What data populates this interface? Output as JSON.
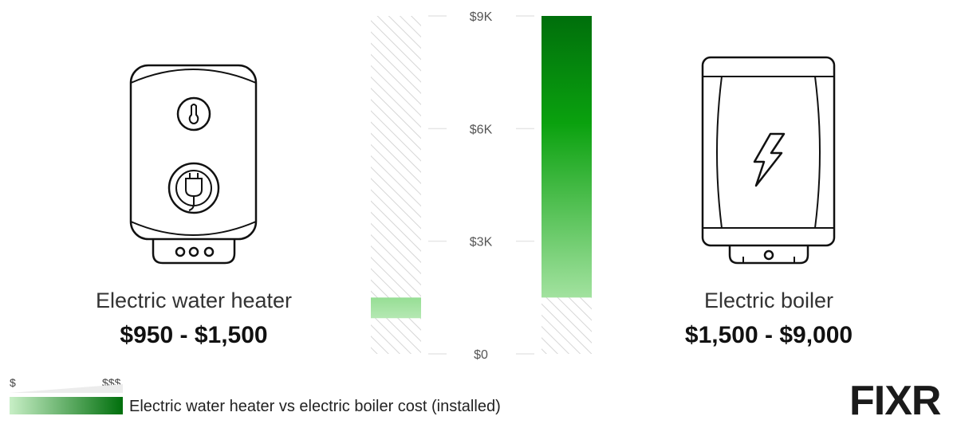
{
  "chart_data": {
    "type": "bar",
    "subtype": "floating-range",
    "ylim": [
      0,
      9000
    ],
    "yticks": [
      {
        "value": 0,
        "label": "$0"
      },
      {
        "value": 3000,
        "label": "$3K"
      },
      {
        "value": 6000,
        "label": "$6K"
      },
      {
        "value": 9000,
        "label": "$9K"
      }
    ],
    "grid": true,
    "series": [
      {
        "name": "Electric water heater",
        "price_label": "$950 - $1,500",
        "low": 950,
        "high": 1500,
        "color_low": "#b5e8b3",
        "color_high": "#96de94"
      },
      {
        "name": "Electric boiler",
        "price_label": "$1,500 - $9,000",
        "low": 1500,
        "high": 9000,
        "color_low": "#a2e29f",
        "color_high": "#006f0c"
      }
    ]
  },
  "legend": {
    "low_label": "$",
    "high_label": "$$$",
    "caption": "Electric water heater vs electric boiler cost (installed)"
  },
  "logo": {
    "text": "FIXR"
  },
  "colors": {
    "accent_dark": "#006f0c",
    "accent_mid": "#0aa10e",
    "accent_light": "#c8efc6",
    "hatch": "#d6d6d6",
    "grid": "#e6e6e6"
  },
  "icons": [
    "water-heater-icon",
    "thermometer-icon",
    "plug-icon",
    "boiler-icon",
    "lightning-bolt-icon"
  ]
}
